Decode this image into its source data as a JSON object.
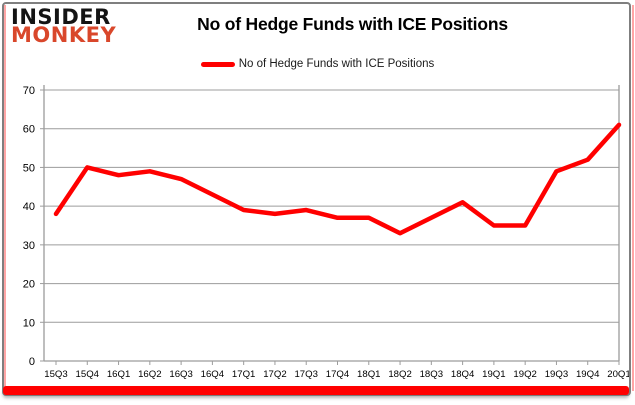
{
  "logo": {
    "line1": "INSIDER",
    "line2": "MONKEY"
  },
  "header": {
    "title": "No of Hedge Funds with ICE Positions"
  },
  "legend": {
    "label": "No of Hedge Funds with ICE Positions"
  },
  "chart_data": {
    "type": "line",
    "title": "No of Hedge Funds with ICE Positions",
    "series_name": "No of Hedge Funds with ICE Positions",
    "categories": [
      "15Q3",
      "15Q4",
      "16Q1",
      "16Q2",
      "16Q3",
      "16Q4",
      "17Q1",
      "17Q2",
      "17Q3",
      "17Q4",
      "18Q1",
      "18Q2",
      "18Q3",
      "18Q4",
      "19Q1",
      "19Q2",
      "19Q3",
      "19Q4",
      "20Q1"
    ],
    "values": [
      38,
      50,
      48,
      49,
      47,
      43,
      39,
      38,
      39,
      37,
      37,
      33,
      37,
      41,
      35,
      35,
      49,
      52,
      61
    ],
    "ylim": [
      0,
      70
    ],
    "yticks": [
      0,
      10,
      20,
      30,
      40,
      50,
      60,
      70
    ],
    "grid": true,
    "legend_position": "top-center",
    "line_color": "#ff0000"
  },
  "colors": {
    "accent_red": "#ff0000",
    "logo_insider": "#141414",
    "logo_monkey": "#d9472b",
    "card_border": "#7f7f7f",
    "grid": "#9c9c9c",
    "axis_text": "#000000"
  }
}
